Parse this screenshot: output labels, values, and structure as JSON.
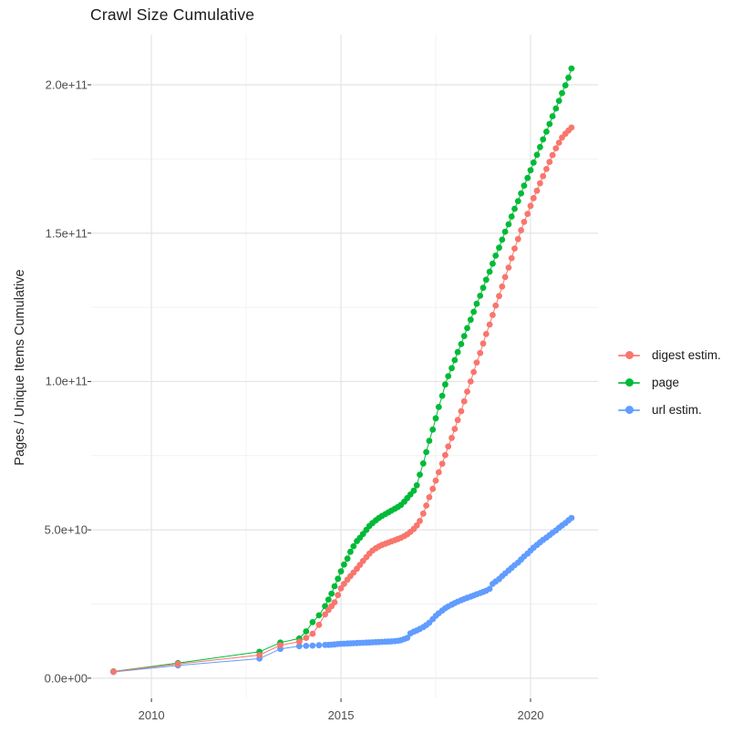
{
  "page": {
    "title": "Crawl Size Cumulative"
  },
  "chart_data": {
    "type": "scatter",
    "title": "Crawl Size Cumulative",
    "xlabel": "",
    "ylabel": "Pages / Unique Items Cumulative",
    "legend_position": "right",
    "grid": "on",
    "background": "#ffffff",
    "grid_major_color": "#e4e4e4",
    "grid_minor_color": "#f2f2f2",
    "tick_color": "#333333",
    "axis_text_color": "#4d4d4d",
    "xlim": [
      2008.41,
      2021.78
    ],
    "ylim_e9": [
      -6.8,
      216.9
    ],
    "xticks": [
      {
        "value": 2010,
        "label": "2010"
      },
      {
        "value": 2015,
        "label": "2015"
      },
      {
        "value": 2020,
        "label": "2020"
      }
    ],
    "xminor": [
      2012.5,
      2017.5
    ],
    "yticks": [
      {
        "value_e9": 0,
        "label": "0.0e+00"
      },
      {
        "value_e9": 50,
        "label": "5.0e+10"
      },
      {
        "value_e9": 100,
        "label": "1.0e+11"
      },
      {
        "value_e9": 150,
        "label": "1.5e+11"
      },
      {
        "value_e9": 200,
        "label": "2.0e+11"
      }
    ],
    "yminor_e9": [
      25,
      75,
      125,
      175
    ],
    "x_unit": "year",
    "y_unit": "pages / unique items (value_e9 = billions)",
    "x": [
      2009.0,
      2010.7,
      2012.85,
      2013.4,
      2013.9,
      2014.08,
      2014.25,
      2014.42,
      2014.58,
      2014.67,
      2014.75,
      2014.83,
      2014.92,
      2015.0,
      2015.08,
      2015.17,
      2015.25,
      2015.33,
      2015.42,
      2015.5,
      2015.58,
      2015.67,
      2015.75,
      2015.83,
      2015.92,
      2016.0,
      2016.08,
      2016.17,
      2016.25,
      2016.33,
      2016.42,
      2016.5,
      2016.58,
      2016.67,
      2016.75,
      2016.83,
      2016.92,
      2017.0,
      2017.08,
      2017.17,
      2017.25,
      2017.33,
      2017.42,
      2017.5,
      2017.58,
      2017.67,
      2017.75,
      2017.83,
      2017.92,
      2018.0,
      2018.08,
      2018.17,
      2018.25,
      2018.33,
      2018.42,
      2018.5,
      2018.58,
      2018.67,
      2018.75,
      2018.83,
      2018.92,
      2019.0,
      2019.08,
      2019.17,
      2019.25,
      2019.33,
      2019.42,
      2019.5,
      2019.58,
      2019.67,
      2019.75,
      2019.83,
      2019.92,
      2020.0,
      2020.08,
      2020.17,
      2020.25,
      2020.33,
      2020.42,
      2020.5,
      2020.58,
      2020.67,
      2020.75,
      2020.83,
      2020.92,
      2021.0,
      2021.08
    ],
    "z_order": [
      1,
      2,
      0
    ],
    "series": [
      {
        "name": "digest estim.",
        "color": "#F8766D",
        "y_e9": [
          2.2,
          4.8,
          7.8,
          11.1,
          12.3,
          13.6,
          15.0,
          18.0,
          21.5,
          23.0,
          24.3,
          25.6,
          28.0,
          30.3,
          31.8,
          33.2,
          34.4,
          35.6,
          36.9,
          38.2,
          39.5,
          40.8,
          42.0,
          43.0,
          43.8,
          44.4,
          44.9,
          45.3,
          45.7,
          46.1,
          46.5,
          46.9,
          47.3,
          47.9,
          48.5,
          49.3,
          50.3,
          51.5,
          53.0,
          55.5,
          58.2,
          61.0,
          63.8,
          66.6,
          69.4,
          72.3,
          75.2,
          78.1,
          81.0,
          84.0,
          87.0,
          90.0,
          93.3,
          96.6,
          100.0,
          103.2,
          106.4,
          109.6,
          112.8,
          116.0,
          119.2,
          122.4,
          125.6,
          128.8,
          132.0,
          135.2,
          138.4,
          141.6,
          144.8,
          148.0,
          151.0,
          153.8,
          156.5,
          159.2,
          161.8,
          164.3,
          166.8,
          169.2,
          171.6,
          174.0,
          176.3,
          178.6,
          180.5,
          182.2,
          183.5,
          184.6,
          185.6
        ]
      },
      {
        "name": "page",
        "color": "#00BA38",
        "y_e9": [
          2.3,
          5.1,
          8.9,
          12.0,
          13.4,
          15.8,
          18.9,
          21.2,
          24.3,
          26.5,
          28.5,
          31.0,
          33.5,
          36.0,
          38.3,
          40.3,
          42.6,
          44.5,
          46.2,
          47.3,
          48.6,
          50.0,
          51.3,
          52.3,
          53.2,
          54.0,
          54.7,
          55.3,
          55.9,
          56.5,
          57.1,
          57.7,
          58.4,
          59.5,
          60.7,
          61.9,
          63.2,
          65.0,
          68.6,
          72.4,
          76.2,
          80.0,
          83.8,
          87.6,
          91.4,
          95.2,
          99.0,
          101.8,
          104.5,
          107.2,
          109.9,
          112.6,
          115.3,
          118.0,
          120.8,
          123.5,
          126.2,
          128.9,
          131.6,
          134.3,
          137.0,
          139.7,
          142.4,
          145.1,
          147.8,
          150.5,
          153.0,
          155.6,
          158.2,
          160.8,
          163.4,
          166.0,
          168.6,
          171.2,
          173.8,
          176.4,
          179.0,
          181.6,
          184.2,
          186.8,
          189.4,
          192.0,
          194.6,
          197.2,
          199.8,
          202.4,
          205.5
        ]
      },
      {
        "name": "url estim.",
        "color": "#619CFF",
        "y_e9": [
          2.1,
          4.3,
          6.6,
          9.9,
          10.8,
          10.9,
          11.0,
          11.1,
          11.2,
          11.25,
          11.3,
          11.4,
          11.5,
          11.6,
          11.65,
          11.7,
          11.75,
          11.8,
          11.85,
          11.9,
          11.95,
          12.0,
          12.05,
          12.1,
          12.15,
          12.2,
          12.25,
          12.3,
          12.35,
          12.4,
          12.5,
          12.6,
          12.8,
          13.2,
          13.6,
          15.1,
          15.7,
          16.1,
          16.6,
          17.2,
          17.9,
          18.7,
          19.9,
          21.0,
          21.9,
          22.8,
          23.6,
          24.2,
          24.8,
          25.3,
          25.8,
          26.3,
          26.7,
          27.1,
          27.5,
          27.9,
          28.3,
          28.7,
          29.1,
          29.5,
          30.1,
          31.8,
          32.6,
          33.4,
          34.4,
          35.3,
          36.3,
          37.2,
          38.1,
          39.0,
          40.0,
          41.0,
          42.0,
          43.0,
          44.0,
          44.9,
          45.8,
          46.6,
          47.4,
          48.2,
          49.0,
          49.8,
          50.7,
          51.5,
          52.3,
          53.2,
          54.0
        ]
      }
    ]
  }
}
